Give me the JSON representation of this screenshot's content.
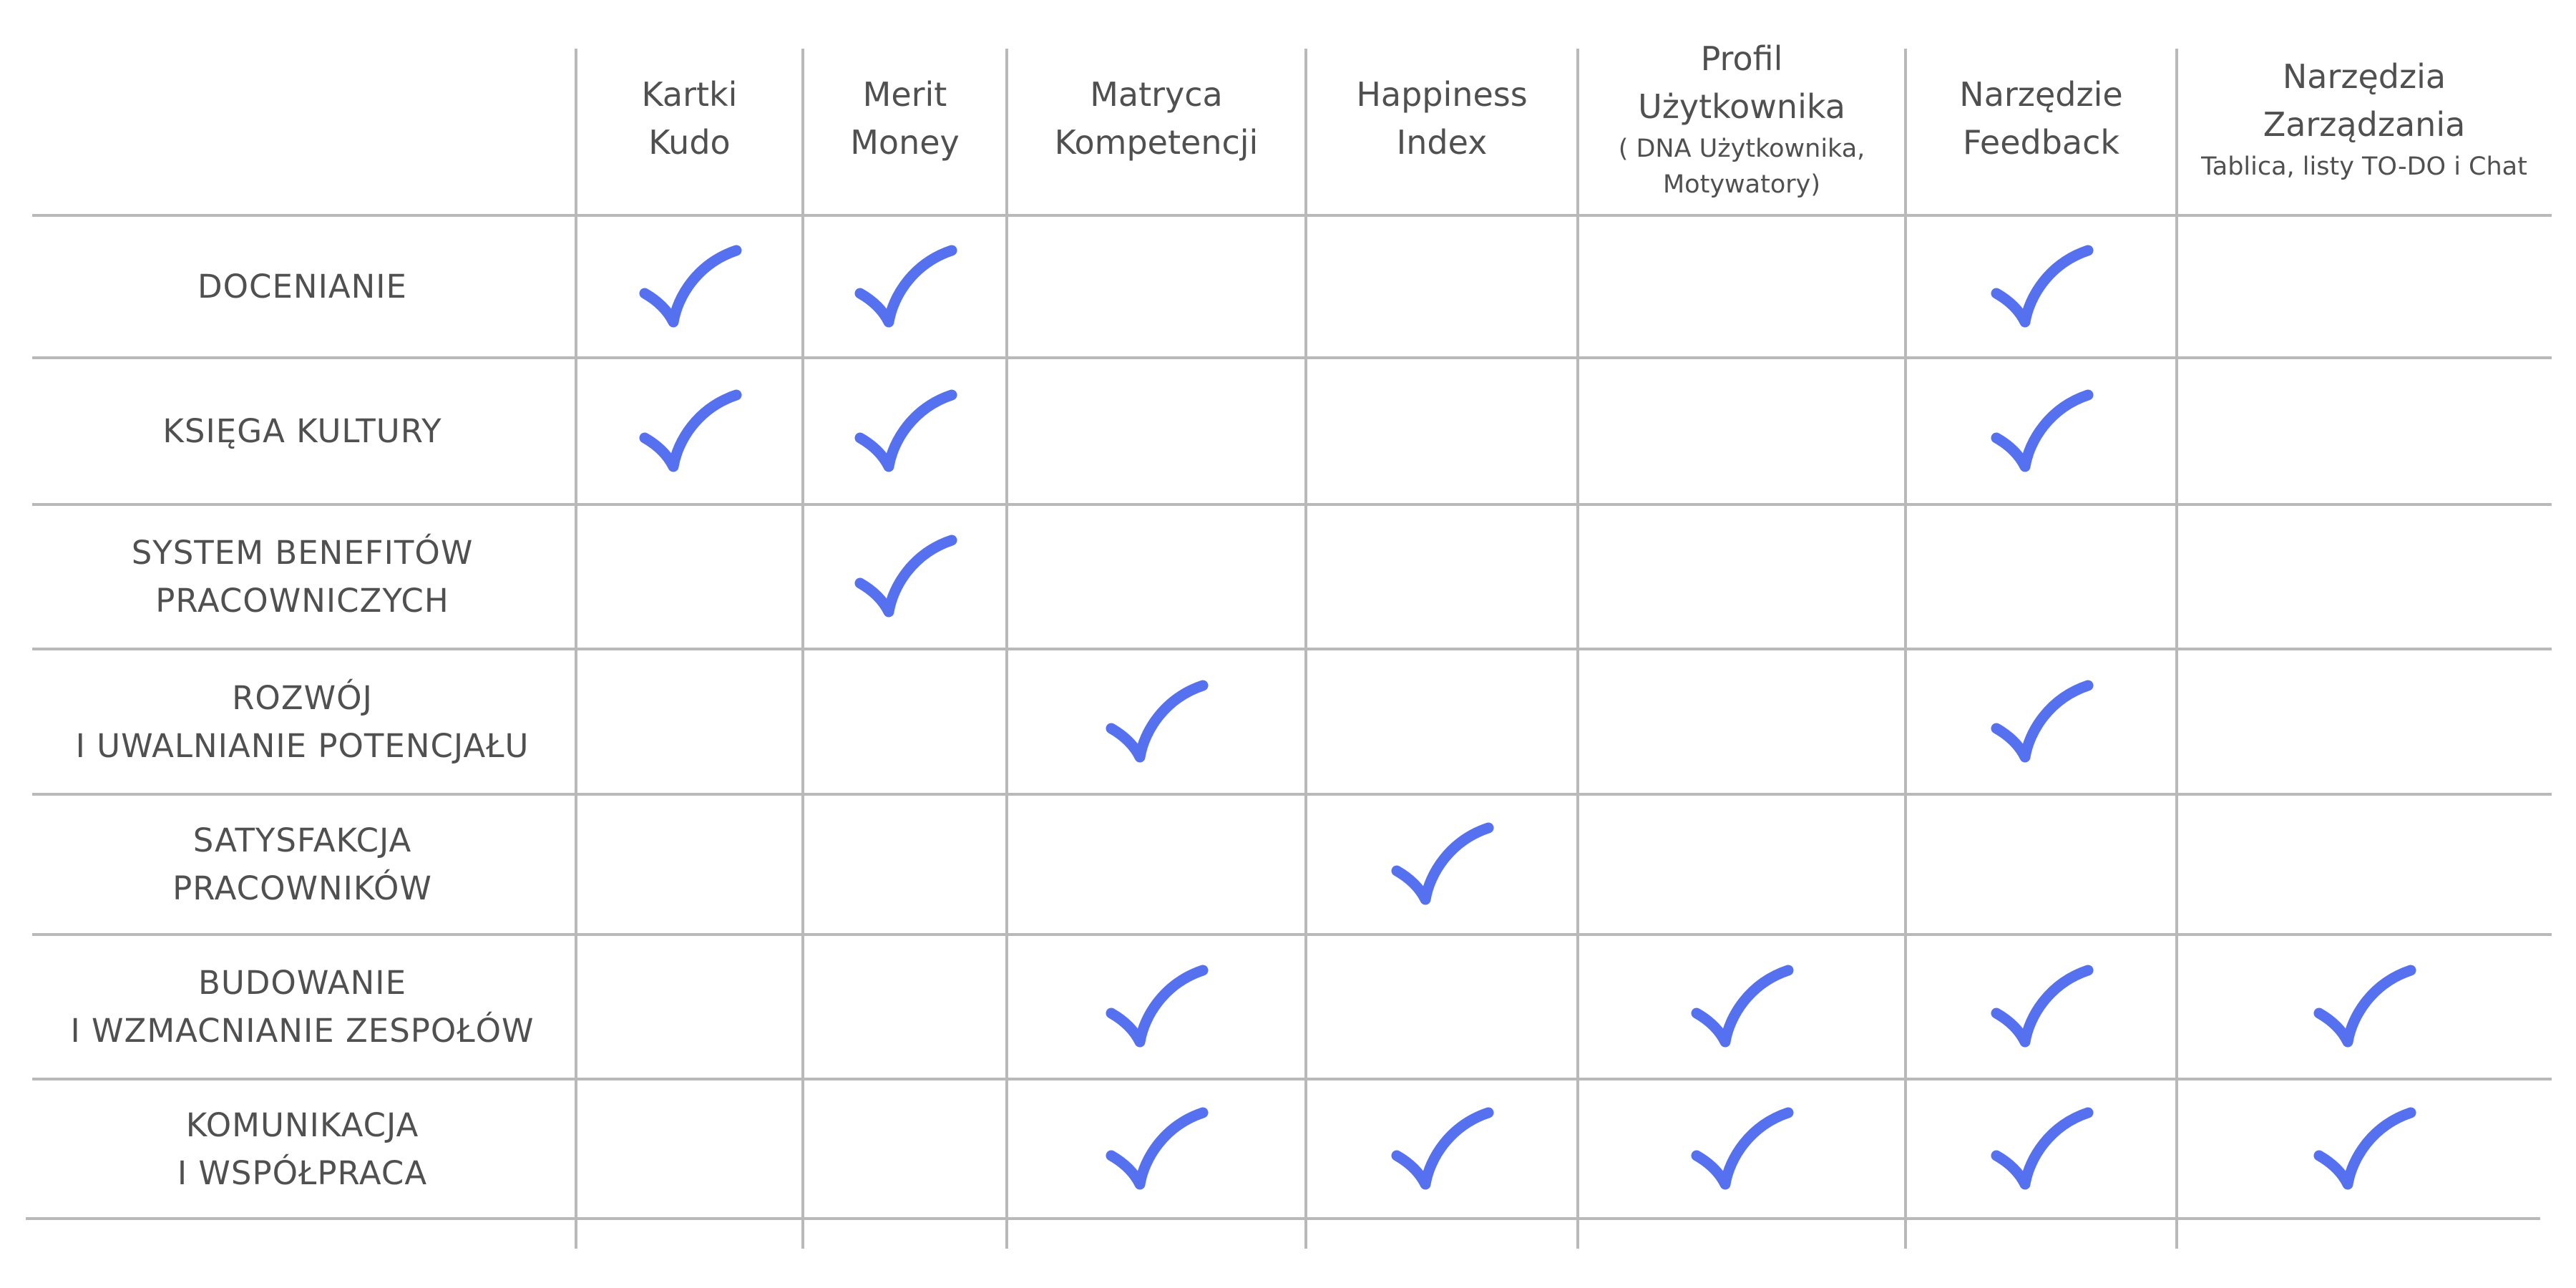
{
  "colors": {
    "check": "#5671f0",
    "grid": "#b9b9b9",
    "text": "#505050"
  },
  "columns": [
    {
      "title": "Kartki\nKudo",
      "subtitle": ""
    },
    {
      "title": "Merit\nMoney",
      "subtitle": ""
    },
    {
      "title": "Matryca\nKompetencji",
      "subtitle": ""
    },
    {
      "title": "Happiness\nIndex",
      "subtitle": ""
    },
    {
      "title": "Profil\nUżytkownika",
      "subtitle": "( DNA Użytkownika,\nMotywatory)"
    },
    {
      "title": "Narzędzie\nFeedback",
      "subtitle": ""
    },
    {
      "title": "Narzędzia\nZarządzania",
      "subtitle": "Tablica, listy TO-DO i Chat"
    }
  ],
  "rows": [
    {
      "label": "DOCENIANIE",
      "checks": [
        true,
        true,
        false,
        false,
        false,
        true,
        false
      ]
    },
    {
      "label": "KSIĘGA KULTURY",
      "checks": [
        true,
        true,
        false,
        false,
        false,
        true,
        false
      ]
    },
    {
      "label": "SYSTEM BENEFITÓW\nPRACOWNICZYCH",
      "checks": [
        false,
        true,
        false,
        false,
        false,
        false,
        false
      ]
    },
    {
      "label": "ROZWÓJ\nI UWALNIANIE POTENCJAŁU",
      "checks": [
        false,
        false,
        true,
        false,
        false,
        true,
        false
      ]
    },
    {
      "label": "SATYSFAKCJA\nPRACOWNIKÓW",
      "checks": [
        false,
        false,
        false,
        true,
        false,
        false,
        false
      ]
    },
    {
      "label": "BUDOWANIE\nI WZMACNIANIE ZESPOŁÓW",
      "checks": [
        false,
        false,
        true,
        false,
        true,
        true,
        true
      ]
    },
    {
      "label": "KOMUNIKACJA\nI WSPÓŁPRACA",
      "checks": [
        false,
        false,
        true,
        true,
        true,
        true,
        true
      ]
    }
  ]
}
